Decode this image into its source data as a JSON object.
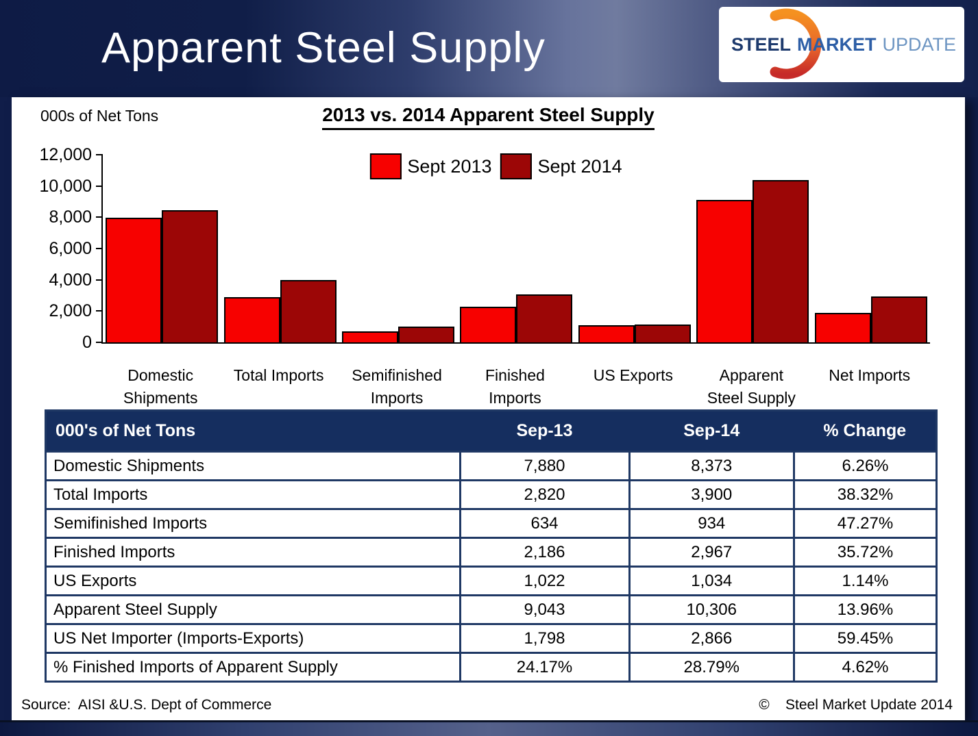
{
  "header": {
    "title": "Apparent Steel Supply",
    "logo": {
      "steel": "STEEL",
      "market": "MARKET",
      "update": "UPDATE"
    }
  },
  "chart_data": {
    "type": "bar",
    "title": "2013 vs. 2014 Apparent Steel Supply",
    "units_label": "000s of Net Tons",
    "categories": [
      "Domestic Shipments",
      "Total Imports",
      "Semifinished Imports",
      "Finished Imports",
      "US Exports",
      "Apparent Steel Supply",
      "Net Imports"
    ],
    "category_label_lines": [
      [
        "Domestic",
        "Shipments"
      ],
      [
        "Total Imports"
      ],
      [
        "Semifinished",
        "Imports"
      ],
      [
        "Finished",
        "Imports"
      ],
      [
        "US Exports"
      ],
      [
        "Apparent",
        "Steel Supply"
      ],
      [
        "Net Imports"
      ]
    ],
    "series": [
      {
        "name": "Sept 2013",
        "color": "#F70100",
        "values": [
          7880,
          2820,
          634,
          2186,
          1022,
          9043,
          1798
        ]
      },
      {
        "name": "Sept 2014",
        "color": "#9C0606",
        "values": [
          8373,
          3900,
          934,
          2967,
          1034,
          10306,
          2866
        ]
      }
    ],
    "ylim": [
      0,
      12000
    ],
    "yticks": [
      {
        "value": 0,
        "label": "0"
      },
      {
        "value": 2000,
        "label": "2,000"
      },
      {
        "value": 4000,
        "label": "4,000"
      },
      {
        "value": 6000,
        "label": "6,000"
      },
      {
        "value": 8000,
        "label": "8,000"
      },
      {
        "value": 10000,
        "label": "10,000"
      },
      {
        "value": 12000,
        "label": "12,000"
      }
    ],
    "grid": false,
    "legend_position": "top-center"
  },
  "table": {
    "columns": [
      "000's of Net Tons",
      "Sep-13",
      "Sep-14",
      "% Change"
    ],
    "column_widths_pct": [
      46.5,
      19,
      18.5,
      16
    ],
    "rows": [
      [
        "Domestic Shipments",
        "7,880",
        "8,373",
        "6.26%"
      ],
      [
        "Total Imports",
        "2,820",
        "3,900",
        "38.32%"
      ],
      [
        "Semifinished Imports",
        "634",
        "934",
        "47.27%"
      ],
      [
        "Finished Imports",
        "2,186",
        "2,967",
        "35.72%"
      ],
      [
        "US Exports",
        "1,022",
        "1,034",
        "1.14%"
      ],
      [
        "Apparent Steel Supply",
        "9,043",
        "10,306",
        "13.96%"
      ],
      [
        "US Net Importer (Imports-Exports)",
        "1,798",
        "2,866",
        "59.45%"
      ],
      [
        "% Finished Imports of Apparent Supply",
        "24.17%",
        "28.79%",
        "4.62%"
      ]
    ]
  },
  "footer": {
    "source": "Source:  AISI &U.S. Dept of Commerce",
    "copyright": "©    Steel Market Update 2014"
  },
  "colors": {
    "accent_navy": "#152E5F",
    "table_border": "#1F3864",
    "bar_red": "#F70100",
    "bar_dark_red": "#9C0606"
  }
}
